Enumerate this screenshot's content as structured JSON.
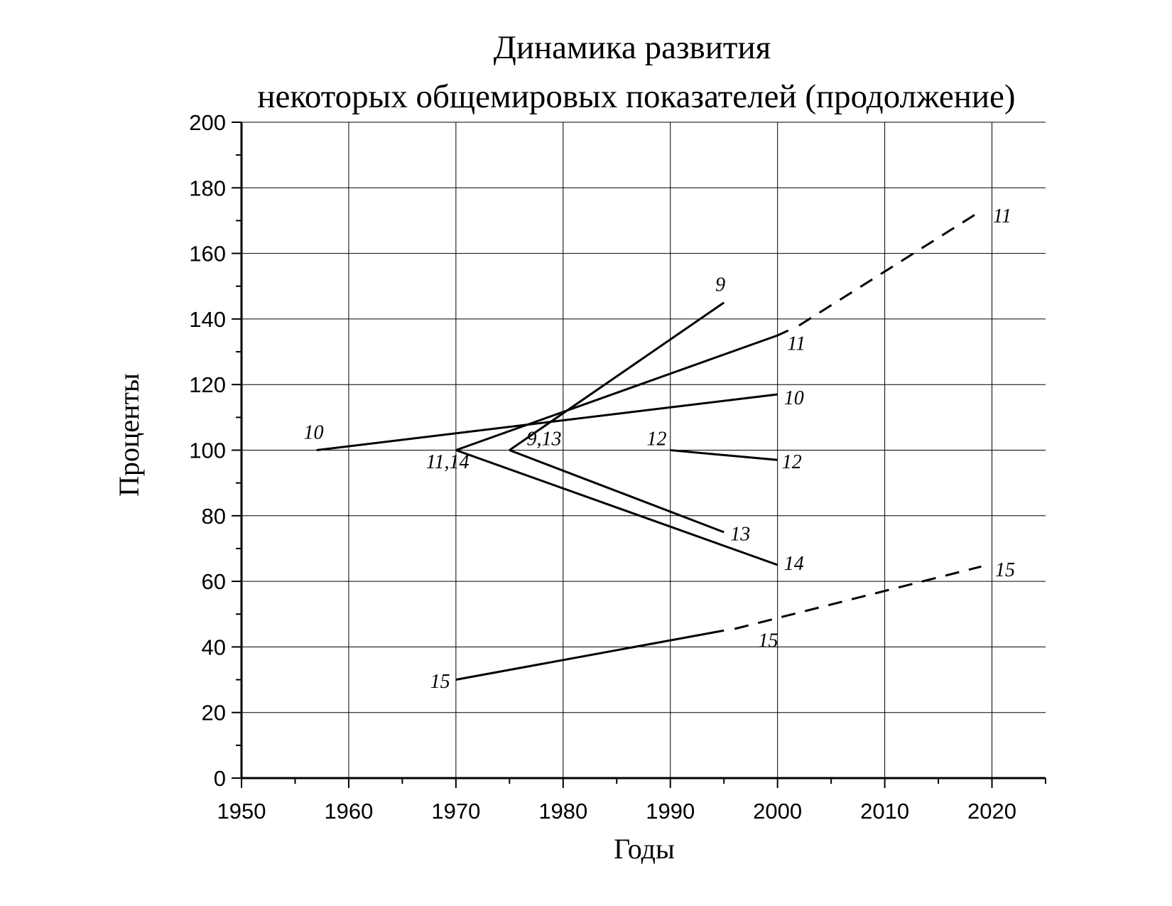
{
  "chart_data": {
    "type": "line",
    "title": [
      "Динамика развития",
      "некоторых общемировых показателей (продолжение)"
    ],
    "xlabel": "Годы",
    "ylabel": "Проценты",
    "xlim": [
      1950,
      2025
    ],
    "ylim": [
      0,
      200
    ],
    "xticks": [
      1950,
      1960,
      1970,
      1980,
      1990,
      2000,
      2010,
      2020
    ],
    "yticks": [
      0,
      20,
      40,
      60,
      80,
      100,
      120,
      140,
      160,
      180,
      200
    ],
    "grid": true,
    "series": [
      {
        "id": "s9",
        "style": "solid",
        "x": [
          1975,
          1995
        ],
        "y": [
          100,
          145
        ]
      },
      {
        "id": "s10",
        "style": "solid",
        "x": [
          1957,
          2000
        ],
        "y": [
          100,
          117
        ]
      },
      {
        "id": "s11",
        "style": "solid",
        "x": [
          1970,
          2000,
          2001
        ],
        "y": [
          100,
          135,
          136.5
        ]
      },
      {
        "id": "s11-projection",
        "style": "dashed",
        "x": [
          2002,
          2019
        ],
        "y": [
          138,
          173
        ]
      },
      {
        "id": "s12",
        "style": "solid",
        "x": [
          1990,
          2000
        ],
        "y": [
          100,
          97
        ]
      },
      {
        "id": "s13",
        "style": "solid",
        "x": [
          1975,
          1995
        ],
        "y": [
          100,
          75
        ]
      },
      {
        "id": "s14",
        "style": "solid",
        "x": [
          1970,
          2000
        ],
        "y": [
          100,
          65
        ]
      },
      {
        "id": "s15",
        "style": "solid",
        "x": [
          1970,
          1995
        ],
        "y": [
          30,
          45
        ]
      },
      {
        "id": "s15-projection",
        "style": "dashed",
        "x": [
          1996,
          2019
        ],
        "y": [
          45.5,
          64.5
        ]
      }
    ],
    "annotations": [
      {
        "text": "9",
        "x": 1994.2,
        "y": 148.5
      },
      {
        "text": "10",
        "x": 1955.8,
        "y": 103.5
      },
      {
        "text": "9,13",
        "x": 1976.6,
        "y": 101.5
      },
      {
        "text": "11,14",
        "x": 1967.2,
        "y": 94.5
      },
      {
        "text": "12",
        "x": 1987.8,
        "y": 101.5
      },
      {
        "text": "12",
        "x": 2000.4,
        "y": 94.5
      },
      {
        "text": "10",
        "x": 2000.6,
        "y": 114
      },
      {
        "text": "11",
        "x": 2000.9,
        "y": 130.5
      },
      {
        "text": "11",
        "x": 2020.1,
        "y": 169.5
      },
      {
        "text": "13",
        "x": 1995.6,
        "y": 72.5
      },
      {
        "text": "14",
        "x": 2000.6,
        "y": 63.5
      },
      {
        "text": "15",
        "x": 2020.3,
        "y": 61.5
      },
      {
        "text": "15",
        "x": 1998.2,
        "y": 40
      },
      {
        "text": "15",
        "x": 1967.6,
        "y": 27.5
      }
    ]
  }
}
